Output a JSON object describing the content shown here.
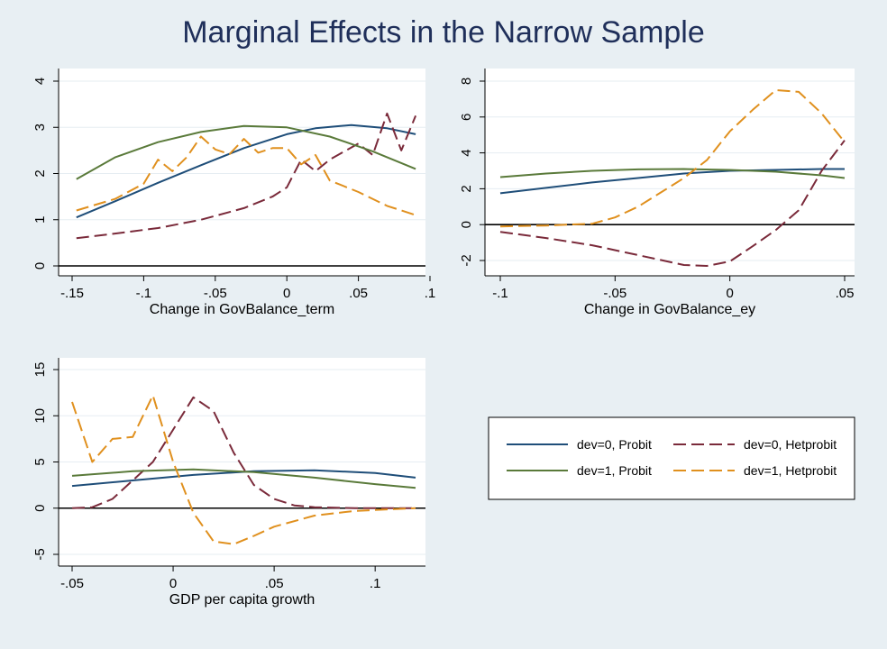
{
  "title": "Marginal Effects in the Narrow Sample",
  "colors": {
    "background": "#e8eff3",
    "plot_area": "#ffffff",
    "title": "#1f2f5a",
    "dev0_probit": "#1f4e79",
    "dev1_probit": "#5a7a3a",
    "dev0_hetprobit": "#7a2a3a",
    "dev1_hetprobit": "#e0901e",
    "zero_line": "#000000",
    "grid": "#e6edf2"
  },
  "legend": {
    "placement": "bottom-right",
    "entries": [
      {
        "label": "dev=0, Probit",
        "color": "#1f4e79",
        "dashed": false
      },
      {
        "label": "dev=0, Hetprobit",
        "color": "#7a2a3a",
        "dashed": true
      },
      {
        "label": "dev=1, Probit",
        "color": "#5a7a3a",
        "dashed": false
      },
      {
        "label": "dev=1, Hetprobit",
        "color": "#e0901e",
        "dashed": true
      }
    ]
  },
  "chart_data": [
    {
      "type": "line",
      "xlabel": "Change in GovBalance_term",
      "ylabel": "",
      "xlim": [
        -0.15,
        0.1
      ],
      "ylim": [
        0,
        4
      ],
      "xticks": [
        -0.15,
        -0.1,
        -0.05,
        0,
        0.05,
        0.1
      ],
      "xtick_labels": [
        "-.15",
        "-.1",
        "-.05",
        "0",
        ".05",
        ".1"
      ],
      "yticks": [
        0,
        1,
        2,
        3,
        4
      ],
      "ytick_labels": [
        "0",
        "1",
        "2",
        "3",
        "4"
      ],
      "grid": true,
      "zero_line": true,
      "series": [
        {
          "name": "dev=0, Probit",
          "dashed": false,
          "color": "#1f4e79",
          "x": [
            -0.147,
            -0.12,
            -0.09,
            -0.06,
            -0.03,
            0,
            0.02,
            0.045,
            0.07,
            0.09
          ],
          "y": [
            1.05,
            1.4,
            1.8,
            2.18,
            2.55,
            2.85,
            2.98,
            3.05,
            2.98,
            2.85
          ]
        },
        {
          "name": "dev=0, Hetprobit",
          "dashed": true,
          "color": "#7a2a3a",
          "x": [
            -0.147,
            -0.12,
            -0.09,
            -0.06,
            -0.03,
            -0.01,
            0,
            0.01,
            0.02,
            0.03,
            0.05,
            0.06,
            0.07,
            0.08,
            0.09
          ],
          "y": [
            0.6,
            0.7,
            0.82,
            1.0,
            1.25,
            1.5,
            1.7,
            2.3,
            2.05,
            2.3,
            2.65,
            2.4,
            3.3,
            2.5,
            3.25
          ]
        },
        {
          "name": "dev=1, Probit",
          "dashed": false,
          "color": "#5a7a3a",
          "x": [
            -0.147,
            -0.12,
            -0.09,
            -0.06,
            -0.03,
            0,
            0.03,
            0.06,
            0.09
          ],
          "y": [
            1.88,
            2.35,
            2.68,
            2.9,
            3.03,
            3.0,
            2.8,
            2.48,
            2.1
          ]
        },
        {
          "name": "dev=1, Hetprobit",
          "dashed": true,
          "color": "#e0901e",
          "x": [
            -0.147,
            -0.12,
            -0.1,
            -0.09,
            -0.08,
            -0.07,
            -0.06,
            -0.05,
            -0.04,
            -0.03,
            -0.02,
            -0.01,
            0,
            0.01,
            0.02,
            0.03,
            0.05,
            0.07,
            0.09
          ],
          "y": [
            1.2,
            1.45,
            1.78,
            2.3,
            2.05,
            2.35,
            2.8,
            2.52,
            2.42,
            2.75,
            2.45,
            2.55,
            2.55,
            2.2,
            2.4,
            1.85,
            1.6,
            1.3,
            1.1
          ]
        }
      ]
    },
    {
      "type": "line",
      "xlabel": "Change in GovBalance_ey",
      "ylabel": "",
      "xlim": [
        -0.1,
        0.05
      ],
      "ylim": [
        -2,
        8
      ],
      "xticks": [
        -0.1,
        -0.05,
        0,
        0.05
      ],
      "xtick_labels": [
        "-.1",
        "-.05",
        "0",
        ".05"
      ],
      "yticks": [
        -2,
        0,
        2,
        4,
        6,
        8
      ],
      "ytick_labels": [
        "-2",
        "0",
        "2",
        "4",
        "6",
        "8"
      ],
      "grid": true,
      "zero_line": true,
      "series": [
        {
          "name": "dev=0, Probit",
          "dashed": false,
          "color": "#1f4e79",
          "x": [
            -0.1,
            -0.08,
            -0.06,
            -0.04,
            -0.02,
            0,
            0.02,
            0.04,
            0.05
          ],
          "y": [
            1.75,
            2.05,
            2.35,
            2.6,
            2.85,
            3.0,
            3.05,
            3.1,
            3.1
          ]
        },
        {
          "name": "dev=0, Hetprobit",
          "dashed": true,
          "color": "#7a2a3a",
          "x": [
            -0.1,
            -0.08,
            -0.06,
            -0.04,
            -0.02,
            -0.01,
            0,
            0.01,
            0.02,
            0.03,
            0.04,
            0.05
          ],
          "y": [
            -0.4,
            -0.75,
            -1.15,
            -1.7,
            -2.25,
            -2.3,
            -2.05,
            -1.2,
            -0.3,
            0.8,
            3.0,
            4.7
          ]
        },
        {
          "name": "dev=1, Probit",
          "dashed": false,
          "color": "#5a7a3a",
          "x": [
            -0.1,
            -0.08,
            -0.06,
            -0.04,
            -0.02,
            0,
            0.02,
            0.04,
            0.05
          ],
          "y": [
            2.65,
            2.85,
            3.0,
            3.08,
            3.1,
            3.05,
            2.95,
            2.75,
            2.6
          ]
        },
        {
          "name": "dev=1, Hetprobit",
          "dashed": true,
          "color": "#e0901e",
          "x": [
            -0.1,
            -0.08,
            -0.06,
            -0.05,
            -0.04,
            -0.03,
            -0.02,
            -0.01,
            0,
            0.01,
            0.02,
            0.03,
            0.04,
            0.05
          ],
          "y": [
            -0.1,
            -0.05,
            0.05,
            0.4,
            1.0,
            1.8,
            2.6,
            3.6,
            5.2,
            6.4,
            7.5,
            7.4,
            6.2,
            4.6
          ]
        }
      ]
    },
    {
      "type": "line",
      "xlabel": "GDP per capita growth",
      "ylabel": "",
      "xlim": [
        -0.05,
        0.12
      ],
      "ylim": [
        -5,
        15
      ],
      "xticks": [
        -0.05,
        0,
        0.05,
        0.1
      ],
      "xtick_labels": [
        "-.05",
        "0",
        ".05",
        ".1"
      ],
      "yticks": [
        -5,
        0,
        5,
        10,
        15
      ],
      "ytick_labels": [
        "-5",
        "0",
        "5",
        "10",
        "15"
      ],
      "grid": true,
      "zero_line": true,
      "series": [
        {
          "name": "dev=0, Probit",
          "dashed": false,
          "color": "#1f4e79",
          "x": [
            -0.05,
            -0.02,
            0.01,
            0.04,
            0.07,
            0.1,
            0.12
          ],
          "y": [
            2.4,
            3.0,
            3.6,
            4.0,
            4.1,
            3.8,
            3.3
          ]
        },
        {
          "name": "dev=0, Hetprobit",
          "dashed": true,
          "color": "#7a2a3a",
          "x": [
            -0.05,
            -0.04,
            -0.03,
            -0.02,
            -0.01,
            0,
            0.01,
            0.02,
            0.03,
            0.04,
            0.05,
            0.06,
            0.07,
            0.09,
            0.12
          ],
          "y": [
            0.0,
            0.1,
            1.0,
            3.0,
            5.0,
            8.5,
            12.0,
            10.5,
            6.0,
            2.5,
            1.0,
            0.3,
            0.1,
            0.0,
            0.0
          ]
        },
        {
          "name": "dev=1, Probit",
          "dashed": false,
          "color": "#5a7a3a",
          "x": [
            -0.05,
            -0.02,
            0.01,
            0.04,
            0.07,
            0.1,
            0.12
          ],
          "y": [
            3.5,
            4.0,
            4.2,
            3.9,
            3.3,
            2.6,
            2.2
          ]
        },
        {
          "name": "dev=1, Hetprobit",
          "dashed": true,
          "color": "#e0901e",
          "x": [
            -0.05,
            -0.04,
            -0.03,
            -0.02,
            -0.01,
            0,
            0.01,
            0.02,
            0.03,
            0.04,
            0.05,
            0.07,
            0.09,
            0.12
          ],
          "y": [
            11.5,
            5.0,
            7.5,
            7.7,
            12.2,
            5.0,
            -0.5,
            -3.6,
            -3.9,
            -3.0,
            -2.0,
            -0.8,
            -0.3,
            0.0
          ]
        }
      ]
    }
  ]
}
